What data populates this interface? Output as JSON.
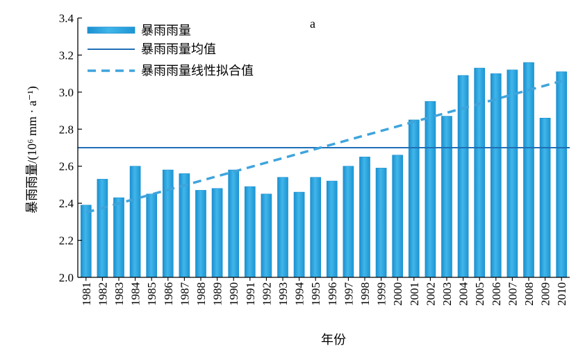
{
  "chart_data": {
    "type": "bar",
    "title": "",
    "panel_label": "a",
    "xlabel": "年份",
    "ylabel": "暴雨雨量/(10⁶ mm · a⁻¹)",
    "ylim": [
      2.0,
      3.4
    ],
    "yticks": [
      2.0,
      2.2,
      2.4,
      2.6,
      2.8,
      3.0,
      3.2,
      3.4
    ],
    "ytick_labels": [
      "2.0",
      "2.2",
      "2.4",
      "2.6",
      "2.8",
      "3.0",
      "3.2",
      "3.4"
    ],
    "categories": [
      "1981",
      "1982",
      "1983",
      "1984",
      "1985",
      "1986",
      "1987",
      "1988",
      "1989",
      "1990",
      "1991",
      "1992",
      "1993",
      "1994",
      "1995",
      "1996",
      "1997",
      "1998",
      "1999",
      "2000",
      "2001",
      "2002",
      "2003",
      "2004",
      "2005",
      "2006",
      "2007",
      "2008",
      "2009",
      "2010"
    ],
    "series": [
      {
        "name": "暴雨雨量",
        "kind": "bar",
        "color": "#29a9e0",
        "values": [
          2.39,
          2.53,
          2.43,
          2.6,
          2.45,
          2.58,
          2.56,
          2.47,
          2.48,
          2.58,
          2.49,
          2.45,
          2.54,
          2.46,
          2.54,
          2.52,
          2.6,
          2.65,
          2.59,
          2.66,
          2.85,
          2.95,
          2.87,
          3.09,
          3.13,
          3.1,
          3.12,
          3.16,
          2.86,
          3.11
        ]
      },
      {
        "name": "暴雨雨量均值",
        "kind": "hline",
        "color": "#1f6fb5",
        "value": 2.7
      },
      {
        "name": "暴雨雨量线性拟合值",
        "kind": "trend",
        "color": "#3fa4dc",
        "start": 2.35,
        "end": 3.06
      }
    ],
    "legend_position": "top-left",
    "grid": false
  }
}
